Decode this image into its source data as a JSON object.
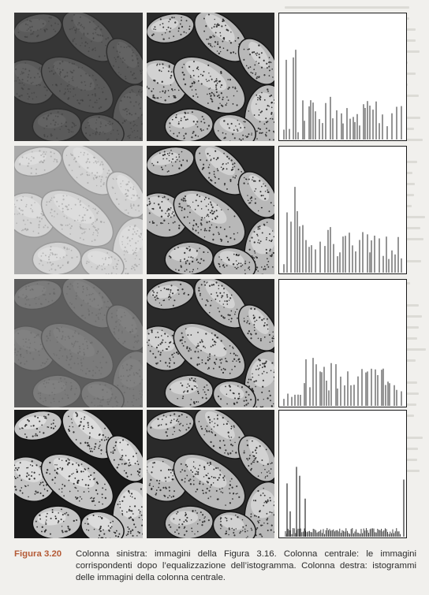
{
  "figure": {
    "label": "Figura 3.20",
    "caption": "Colonna sinistra: immagini della Figura 3.16. Colonna centrale: le immagini corrispondenti dopo l’equalizzazione dell’istogramma. Colonna destra: istogrammi delle immagini della colonna centrale.",
    "image_subject": "pollen-grains",
    "rows": [
      {
        "left_variant": "dark",
        "center_variant": "equalized",
        "histogram": "equalized-histogram-1"
      },
      {
        "left_variant": "light",
        "center_variant": "equalized",
        "histogram": "equalized-histogram-2"
      },
      {
        "left_variant": "low-contrast",
        "center_variant": "equalized",
        "histogram": "equalized-histogram-3"
      },
      {
        "left_variant": "high-contrast",
        "center_variant": "equalized",
        "histogram": "equalized-histogram-4"
      }
    ]
  },
  "colors": {
    "caption_label": "#b45a36",
    "page_background": "#f1f0ed",
    "histogram_bars": "#2b2b2b"
  }
}
